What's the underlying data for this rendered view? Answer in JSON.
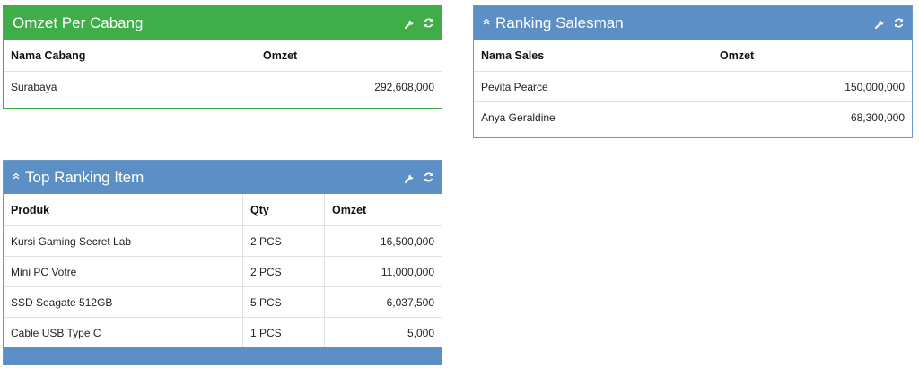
{
  "omzet_cabang": {
    "title": "Omzet Per Cabang",
    "columns": [
      "Nama Cabang",
      "Omzet"
    ],
    "rows": [
      {
        "cabang": "Surabaya",
        "omzet": "292,608,000"
      }
    ],
    "icons": [
      "wrench-icon",
      "refresh-icon"
    ],
    "color": "#3fae49"
  },
  "ranking_salesman": {
    "title": "Ranking Salesman",
    "columns": [
      "Nama Sales",
      "Omzet"
    ],
    "rows": [
      {
        "sales": "Pevita Pearce",
        "omzet": "150,000,000"
      },
      {
        "sales": "Anya Geraldine",
        "omzet": "68,300,000"
      }
    ],
    "icons": [
      "chevron-up-icon",
      "wrench-icon",
      "refresh-icon"
    ],
    "color": "#5b8fc5"
  },
  "top_item": {
    "title": "Top Ranking Item",
    "columns": [
      "Produk",
      "Qty",
      "Omzet"
    ],
    "rows": [
      {
        "produk": "Kursi Gaming Secret Lab",
        "qty": "2 PCS",
        "omzet": "16,500,000"
      },
      {
        "produk": "Mini PC Votre",
        "qty": "2 PCS",
        "omzet": "11,000,000"
      },
      {
        "produk": "SSD Seagate 512GB",
        "qty": "5 PCS",
        "omzet": "6,037,500"
      },
      {
        "produk": "Cable USB Type C",
        "qty": "1 PCS",
        "omzet": "5,000"
      }
    ],
    "icons": [
      "chevron-up-icon",
      "wrench-icon",
      "refresh-icon"
    ],
    "color": "#5b8fc5"
  }
}
